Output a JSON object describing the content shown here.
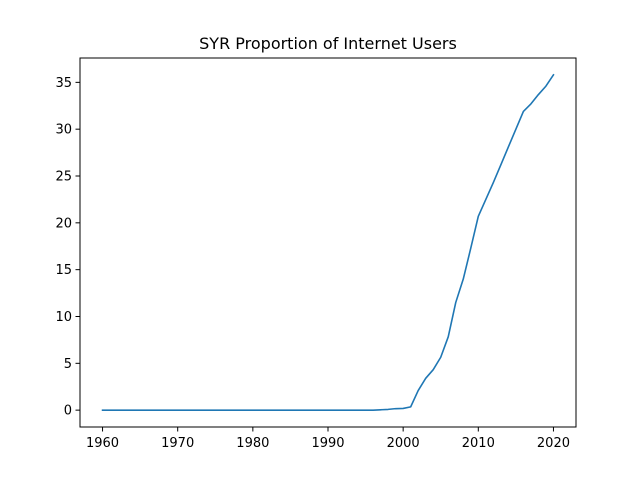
{
  "chart_data": {
    "type": "line",
    "title": "SYR Proportion of Internet Users",
    "xlabel": "",
    "ylabel": "",
    "xlim": [
      1957,
      2023
    ],
    "ylim": [
      -1.8,
      37.6
    ],
    "xticks": [
      1960,
      1970,
      1980,
      1990,
      2000,
      2010,
      2020
    ],
    "yticks": [
      0,
      5,
      10,
      15,
      20,
      25,
      30,
      35
    ],
    "grid": false,
    "legend": "none",
    "line_color": "#1f77b4",
    "series": [
      {
        "x": [
          1960,
          1961,
          1962,
          1963,
          1964,
          1965,
          1966,
          1967,
          1968,
          1969,
          1970,
          1971,
          1972,
          1973,
          1974,
          1975,
          1976,
          1977,
          1978,
          1979,
          1980,
          1981,
          1982,
          1983,
          1984,
          1985,
          1986,
          1987,
          1988,
          1989,
          1990,
          1991,
          1992,
          1993,
          1994,
          1995,
          1996,
          1997,
          1998,
          1999,
          2000,
          2001,
          2002,
          2003,
          2004,
          2005,
          2006,
          2007,
          2008,
          2009,
          2010,
          2011,
          2012,
          2013,
          2014,
          2015,
          2016,
          2017,
          2018,
          2019,
          2020
        ],
        "values": [
          0,
          0,
          0,
          0,
          0,
          0,
          0,
          0,
          0,
          0,
          0,
          0,
          0,
          0,
          0,
          0,
          0,
          0,
          0,
          0,
          0,
          0,
          0,
          0,
          0,
          0,
          0,
          0,
          0,
          0,
          0,
          0,
          0,
          0,
          0,
          0,
          0,
          0.04,
          0.08,
          0.16,
          0.18,
          0.35,
          2.09,
          3.4,
          4.32,
          5.65,
          7.83,
          11.5,
          14.0,
          17.3,
          20.7,
          22.5,
          24.3,
          26.2,
          28.1,
          30.0,
          31.9,
          32.7,
          33.7,
          34.6,
          35.8
        ]
      }
    ]
  }
}
